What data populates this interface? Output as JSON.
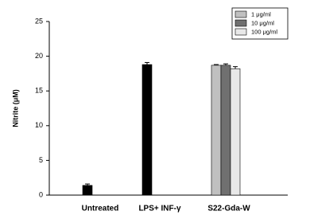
{
  "chart_data": {
    "type": "bar",
    "y_label": "Nitrite (μM)",
    "categories": [
      "Untreated",
      "LPS+ INF-γ",
      "S22-Gda-W"
    ],
    "series": [
      {
        "color": "#000000",
        "values": [
          1.4,
          18.8,
          null
        ],
        "errors": [
          0.2,
          0.3,
          null
        ]
      },
      {
        "name": "1 μg/ml",
        "color": "#c0c0c0",
        "values": [
          null,
          null,
          18.7
        ],
        "errors": [
          null,
          null,
          0.1
        ]
      },
      {
        "name": "10 μg/ml",
        "color": "#707070",
        "values": [
          null,
          null,
          18.7
        ],
        "errors": [
          null,
          null,
          0.2
        ]
      },
      {
        "name": "100 μg/ml",
        "color": "#e8e8e8",
        "values": [
          null,
          null,
          18.2
        ],
        "errors": [
          null,
          null,
          0.3
        ]
      }
    ],
    "ylim": [
      0,
      25
    ],
    "yticks": [
      0,
      5,
      10,
      15,
      20,
      25
    ],
    "legend": "upper right"
  }
}
